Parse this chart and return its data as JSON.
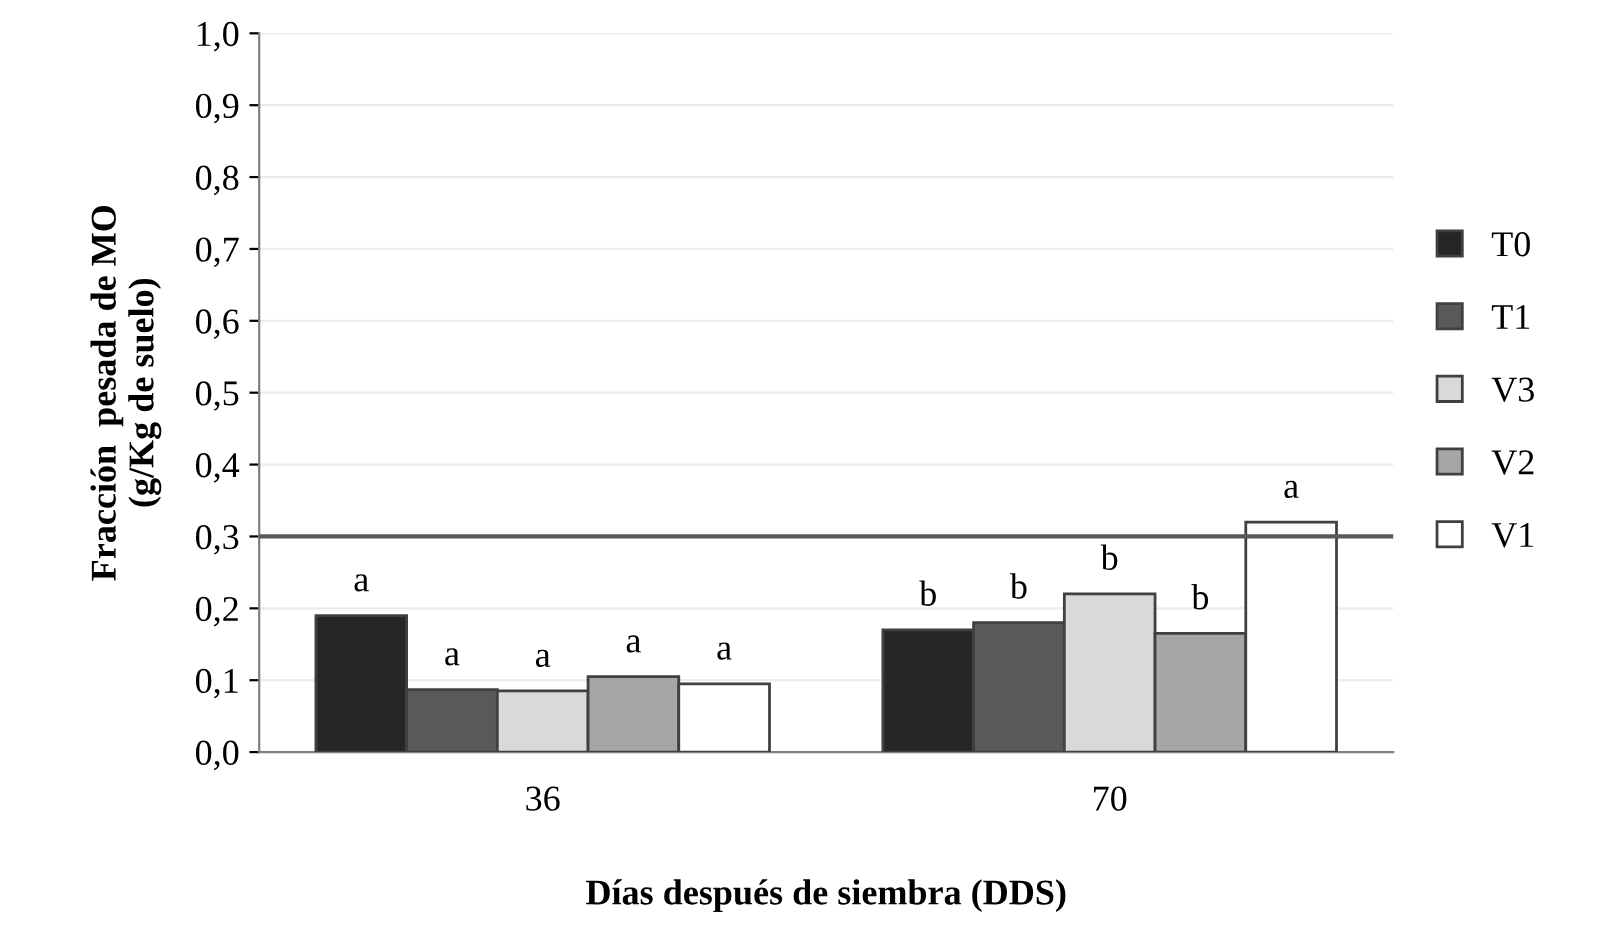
{
  "chart_data": {
    "type": "bar",
    "xlabel": "Días después de siembra (DDS)",
    "ylabel": "Fracción  pesada de MO\n(g/Kg de suelo)",
    "categories": [
      "36",
      "70"
    ],
    "series": [
      {
        "name": "T0",
        "color": "#262626",
        "values": [
          0.19,
          0.17
        ],
        "value_labels": [
          "a",
          "b"
        ]
      },
      {
        "name": "T1",
        "color": "#595959",
        "values": [
          0.087,
          0.18
        ],
        "value_labels": [
          "a",
          "b"
        ]
      },
      {
        "name": "V3",
        "color": "#d9d9d9",
        "values": [
          0.085,
          0.22
        ],
        "value_labels": [
          "a",
          "b"
        ]
      },
      {
        "name": "V2",
        "color": "#a6a6a6",
        "values": [
          0.105,
          0.165
        ],
        "value_labels": [
          "a",
          "b"
        ]
      },
      {
        "name": "V1",
        "color": "#ffffff",
        "values": [
          0.095,
          0.32
        ],
        "value_labels": [
          "a",
          "a"
        ]
      }
    ],
    "ylim": [
      0,
      1
    ],
    "yticks": [
      {
        "value": 0,
        "label": "0,0"
      },
      {
        "value": 0.1,
        "label": "0,1"
      },
      {
        "value": 0.2,
        "label": "0,2"
      },
      {
        "value": 0.3,
        "label": "0,3"
      },
      {
        "value": 0.4,
        "label": "0,4"
      },
      {
        "value": 0.5,
        "label": "0,5"
      },
      {
        "value": 0.6,
        "label": "0,6"
      },
      {
        "value": 0.7,
        "label": "0,7"
      },
      {
        "value": 0.8,
        "label": "0,8"
      },
      {
        "value": 0.9,
        "label": "0,9"
      },
      {
        "value": 1,
        "label": "1,0"
      }
    ],
    "ref_lines": [
      {
        "axis": "y",
        "value": 0.3,
        "color": "#595959"
      }
    ],
    "grid": "y",
    "legend": "right"
  }
}
